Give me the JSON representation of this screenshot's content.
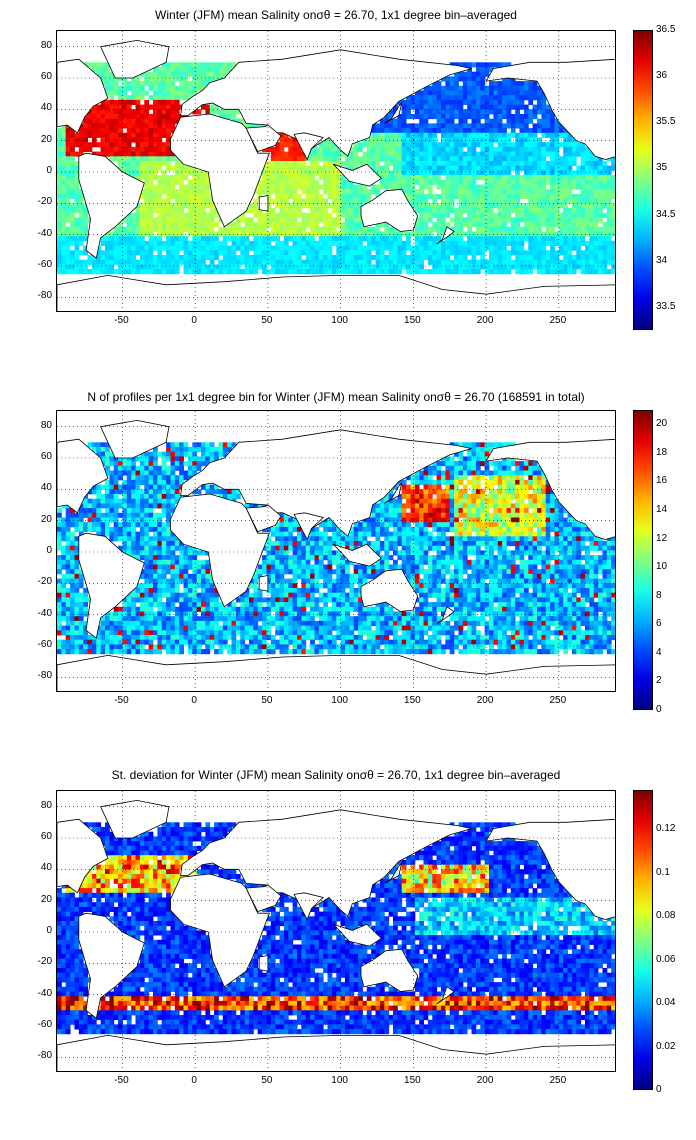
{
  "panels": [
    {
      "title": "Winter (JFM) mean Salinity onσθ = 26.70, 1x1 degree bin–averaged",
      "colorbar": {
        "colormap": "jet",
        "range": [
          33.25,
          36.5
        ],
        "ticks": [
          "36.5",
          "36",
          "35.5",
          "35",
          "34.5",
          "34",
          "33.5"
        ]
      },
      "field": "salinity"
    },
    {
      "title": "N of profiles per 1x1 degree bin for Winter (JFM) mean Salinity onσθ = 26.70 (168591 in total)",
      "colorbar": {
        "colormap": "jet",
        "range": [
          0,
          21
        ],
        "ticks": [
          "20",
          "18",
          "16",
          "14",
          "12",
          "10",
          "8",
          "6",
          "4",
          "2",
          "0"
        ]
      },
      "field": "count"
    },
    {
      "title": "St. deviation for Winter (JFM) mean Salinity onσθ = 26.70, 1x1 degree bin–averaged",
      "colorbar": {
        "colormap": "jet",
        "range": [
          0,
          0.138
        ],
        "ticks": [
          "0.12",
          "0.1",
          "0.08",
          "0.06",
          "0.04",
          "0.02",
          "0"
        ]
      },
      "field": "stdev"
    }
  ],
  "axes": {
    "x_ticks": [
      "-50",
      "0",
      "50",
      "100",
      "150",
      "200",
      "250"
    ],
    "y_ticks": [
      "80",
      "60",
      "40",
      "20",
      "0",
      "-20",
      "-40",
      "-60",
      "-80"
    ],
    "xlim": [
      -95,
      290
    ],
    "ylim": [
      -90,
      90
    ],
    "grid": "dotted"
  }
}
